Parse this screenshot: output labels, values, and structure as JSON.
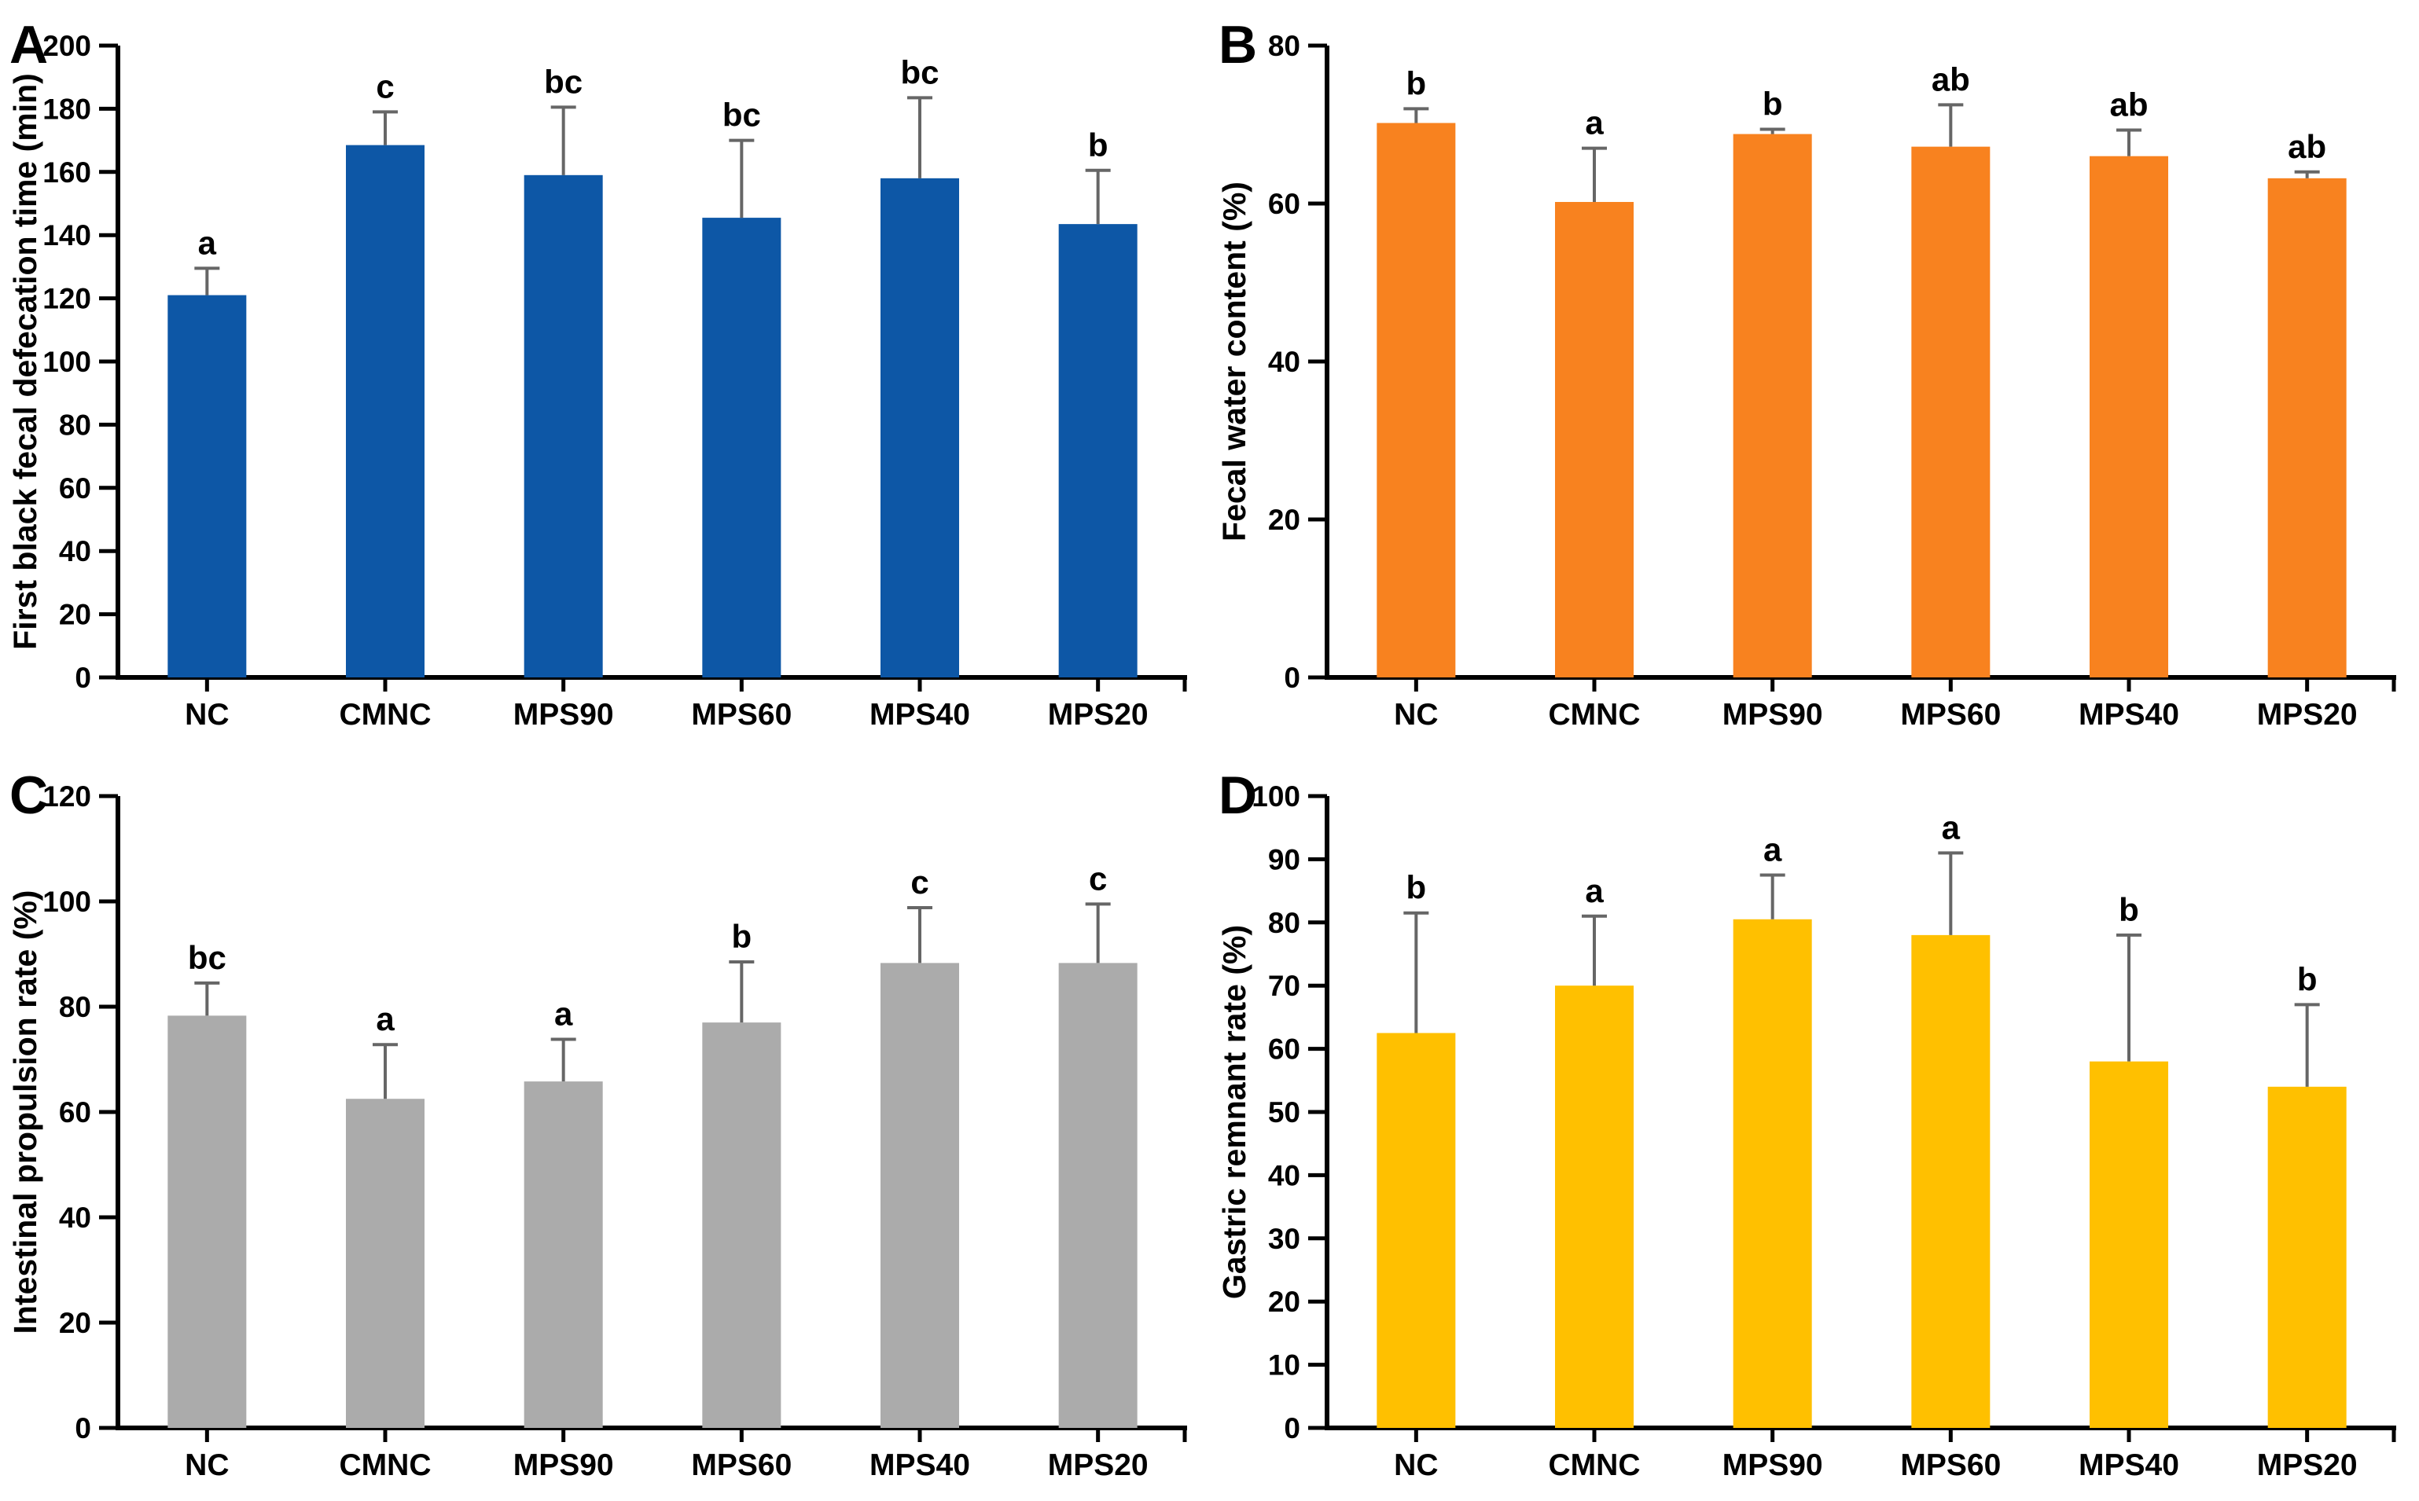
{
  "styles": {
    "axis_color": "#000000",
    "error_bar_color": "#666666",
    "text_color": "#000000",
    "background": "#ffffff"
  },
  "chart_data": [
    {
      "type": "bar",
      "panel_label": "A",
      "ylabel": "First black fecal defecation time (min)",
      "categories": [
        "NC",
        "CMNC",
        "MPS90",
        "MPS60",
        "MPS40",
        "MPS20"
      ],
      "values": [
        121,
        168.5,
        159,
        145.5,
        158,
        143.5
      ],
      "errors": [
        8.5,
        10.5,
        21.5,
        24.5,
        25.5,
        17
      ],
      "sig_letters": [
        "a",
        "c",
        "bc",
        "bc",
        "bc",
        "b"
      ],
      "bar_color": "#0D57A6",
      "ylim": [
        0,
        200
      ],
      "yticks": [
        0,
        20,
        40,
        60,
        80,
        100,
        120,
        140,
        160,
        180,
        200
      ],
      "grid": false,
      "legend": null
    },
    {
      "type": "bar",
      "panel_label": "B",
      "ylabel": "Fecal water content (%)",
      "categories": [
        "NC",
        "CMNC",
        "MPS90",
        "MPS60",
        "MPS40",
        "MPS20"
      ],
      "values": [
        70.2,
        60.2,
        68.8,
        67.2,
        66,
        63.2
      ],
      "errors": [
        1.8,
        6.8,
        0.6,
        5.3,
        3.3,
        0.8
      ],
      "sig_letters": [
        "b",
        "a",
        "b",
        "ab",
        "ab",
        "ab"
      ],
      "bar_color": "#F8821F",
      "ylim": [
        0,
        80
      ],
      "yticks": [
        0,
        20,
        40,
        60,
        80
      ],
      "grid": false,
      "legend": null
    },
    {
      "type": "bar",
      "panel_label": "C",
      "ylabel": "Intestinal propulsion rate (%)",
      "categories": [
        "NC",
        "CMNC",
        "MPS90",
        "MPS60",
        "MPS40",
        "MPS20"
      ],
      "values": [
        78.3,
        62.5,
        65.8,
        77,
        88.3,
        88.3
      ],
      "errors": [
        6.2,
        10.3,
        8,
        11.5,
        10.5,
        11.2
      ],
      "sig_letters": [
        "bc",
        "a",
        "a",
        "b",
        "c",
        "c"
      ],
      "bar_color": "#ABABAB",
      "ylim": [
        0,
        120
      ],
      "yticks": [
        0,
        20,
        40,
        60,
        80,
        100,
        120
      ],
      "grid": false,
      "legend": null
    },
    {
      "type": "bar",
      "panel_label": "D",
      "ylabel": "Gastric remnant rate (%)",
      "categories": [
        "NC",
        "CMNC",
        "MPS90",
        "MPS60",
        "MPS40",
        "MPS20"
      ],
      "values": [
        62.5,
        70,
        80.5,
        78,
        58,
        54
      ],
      "errors": [
        19,
        11,
        7,
        13,
        20,
        13
      ],
      "sig_letters": [
        "b",
        "a",
        "a",
        "a",
        "b",
        "b"
      ],
      "bar_color": "#FFC000",
      "ylim": [
        0,
        100
      ],
      "yticks": [
        0,
        10,
        20,
        30,
        40,
        50,
        60,
        70,
        80,
        90,
        100
      ],
      "grid": false,
      "legend": null
    }
  ]
}
